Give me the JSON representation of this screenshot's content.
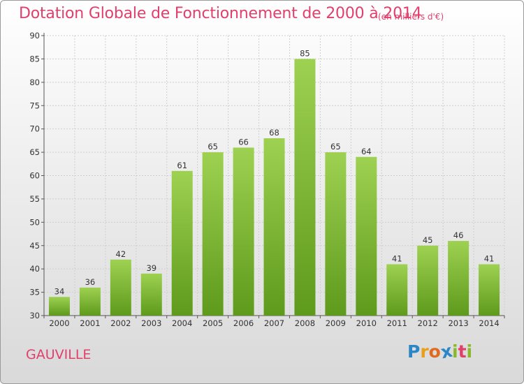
{
  "chart_data": {
    "type": "bar",
    "title": "Dotation Globale de Fonctionnement de 2000 à 2014",
    "subtitle": "(en milliers d'€)",
    "categories": [
      "2000",
      "2001",
      "2002",
      "2003",
      "2004",
      "2005",
      "2006",
      "2007",
      "2008",
      "2009",
      "2010",
      "2011",
      "2012",
      "2013",
      "2014"
    ],
    "values": [
      34,
      36,
      42,
      39,
      61,
      65,
      66,
      68,
      85,
      65,
      64,
      41,
      45,
      46,
      41
    ],
    "ylim": [
      30,
      90
    ],
    "yticks": [
      30,
      35,
      40,
      45,
      50,
      55,
      60,
      65,
      70,
      75,
      80,
      85,
      90
    ],
    "xlabel": "",
    "ylabel": "",
    "grid": true,
    "bar_color": "#7fbf3a"
  },
  "footer": {
    "place": "GAUVILLE",
    "logo": [
      "P",
      "r",
      "o",
      "x",
      "i",
      "t",
      "i"
    ]
  },
  "colors": {
    "title": "#e0406c",
    "logo": [
      "#2b86c8",
      "#e8a01a",
      "#e06a1e",
      "#2b86c8",
      "#8ab82a",
      "#e0406c",
      "#8ab82a"
    ]
  }
}
